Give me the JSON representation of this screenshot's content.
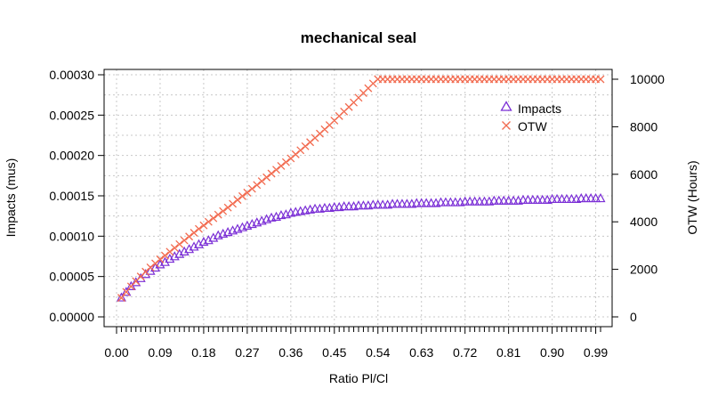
{
  "chart_data": {
    "type": "scatter",
    "title": "mechanical seal",
    "xlabel": "Ratio Pl/Cl",
    "ylabel": "Impacts  (mus)",
    "y2label": "OTW (Hours)",
    "xlim": [
      0,
      1
    ],
    "ylim": [
      0.0,
      0.0003
    ],
    "y2lim": [
      0,
      10000
    ],
    "grid": true,
    "legend_position": "top-right",
    "x_ticks": [
      "0.00",
      "0.09",
      "0.18",
      "0.27",
      "0.36",
      "0.45",
      "0.54",
      "0.63",
      "0.72",
      "0.81",
      "0.90",
      "0.99"
    ],
    "y_ticks": [
      "0.00000",
      "0.00005",
      "0.00010",
      "0.00015",
      "0.00020",
      "0.00025",
      "0.00030"
    ],
    "y2_ticks": [
      "0",
      "2000",
      "4000",
      "6000",
      "8000",
      "10000"
    ],
    "x": [
      0.01,
      0.02,
      0.03,
      0.04,
      0.05,
      0.06,
      0.07,
      0.08,
      0.09,
      0.1,
      0.11,
      0.12,
      0.13,
      0.14,
      0.15,
      0.16,
      0.17,
      0.18,
      0.19,
      0.2,
      0.21,
      0.22,
      0.23,
      0.24,
      0.25,
      0.26,
      0.27,
      0.28,
      0.29,
      0.3,
      0.31,
      0.32,
      0.33,
      0.34,
      0.35,
      0.36,
      0.37,
      0.38,
      0.39,
      0.4,
      0.41,
      0.42,
      0.43,
      0.44,
      0.45,
      0.46,
      0.47,
      0.48,
      0.49,
      0.5,
      0.51,
      0.52,
      0.53,
      0.54,
      0.55,
      0.56,
      0.57,
      0.58,
      0.59,
      0.6,
      0.61,
      0.62,
      0.63,
      0.64,
      0.65,
      0.66,
      0.67,
      0.68,
      0.69,
      0.7,
      0.71,
      0.72,
      0.73,
      0.74,
      0.75,
      0.76,
      0.77,
      0.78,
      0.79,
      0.8,
      0.81,
      0.82,
      0.83,
      0.84,
      0.85,
      0.86,
      0.87,
      0.88,
      0.89,
      0.9,
      0.91,
      0.92,
      0.93,
      0.94,
      0.95,
      0.96,
      0.97,
      0.98,
      0.99,
      1.0
    ],
    "series": [
      {
        "name": "Impacts",
        "marker": "triangle",
        "color": "#7b2fd6",
        "axis": "left",
        "values": [
          2.4e-05,
          3.1e-05,
          3.8e-05,
          4.3e-05,
          4.8e-05,
          5.3e-05,
          5.7e-05,
          6.1e-05,
          6.5e-05,
          6.8e-05,
          7.2e-05,
          7.5e-05,
          7.8e-05,
          8.1e-05,
          8.4e-05,
          8.7e-05,
          9e-05,
          9.3e-05,
          9.5e-05,
          9.8e-05,
          0.000101,
          0.000103,
          0.000105,
          0.000107,
          0.000109,
          0.000111,
          0.000113,
          0.000115,
          0.000117,
          0.000119,
          0.000121,
          0.000123,
          0.000124,
          0.000126,
          0.000127,
          0.000129,
          0.00013,
          0.000131,
          0.000132,
          0.000133,
          0.000134,
          0.000134,
          0.000135,
          0.000135,
          0.000136,
          0.000136,
          0.000137,
          0.000137,
          0.000137,
          0.000138,
          0.000138,
          0.000138,
          0.000139,
          0.000139,
          0.000139,
          0.000139,
          0.00014,
          0.00014,
          0.00014,
          0.00014,
          0.00014,
          0.000141,
          0.000141,
          0.000141,
          0.000141,
          0.000141,
          0.000142,
          0.000142,
          0.000142,
          0.000142,
          0.000142,
          0.000143,
          0.000143,
          0.000143,
          0.000143,
          0.000143,
          0.000143,
          0.000144,
          0.000144,
          0.000144,
          0.000144,
          0.000144,
          0.000144,
          0.000145,
          0.000145,
          0.000145,
          0.000145,
          0.000145,
          0.000145,
          0.000146,
          0.000146,
          0.000146,
          0.000146,
          0.000146,
          0.000146,
          0.000147,
          0.000147,
          0.000147,
          0.000147,
          0.000147
        ]
      },
      {
        "name": "OTW",
        "marker": "cross",
        "color": "#f26b50",
        "axis": "right",
        "values": [
          800,
          1050,
          1280,
          1500,
          1700,
          1900,
          2080,
          2250,
          2420,
          2580,
          2740,
          2900,
          3060,
          3220,
          3380,
          3540,
          3700,
          3850,
          4000,
          4150,
          4300,
          4450,
          4600,
          4760,
          4920,
          5080,
          5230,
          5390,
          5550,
          5710,
          5870,
          6030,
          6190,
          6350,
          6510,
          6670,
          6840,
          7010,
          7180,
          7350,
          7530,
          7710,
          7890,
          8070,
          8260,
          8450,
          8640,
          8830,
          9020,
          9220,
          9420,
          9620,
          9820,
          10000,
          10000,
          10000,
          10000,
          10000,
          10000,
          10000,
          10000,
          10000,
          10000,
          10000,
          10000,
          10000,
          10000,
          10000,
          10000,
          10000,
          10000,
          10000,
          10000,
          10000,
          10000,
          10000,
          10000,
          10000,
          10000,
          10000,
          10000,
          10000,
          10000,
          10000,
          10000,
          10000,
          10000,
          10000,
          10000,
          10000,
          10000,
          10000,
          10000,
          10000,
          10000,
          10000,
          10000,
          10000,
          10000,
          10000
        ]
      }
    ]
  }
}
